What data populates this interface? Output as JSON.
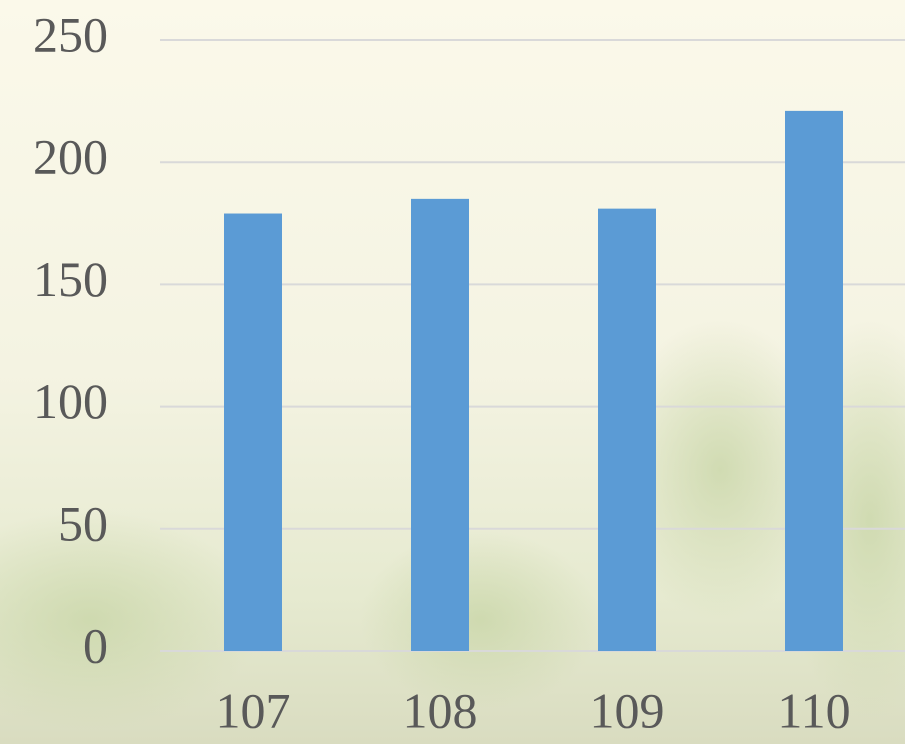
{
  "chart_data": {
    "type": "bar",
    "categories": [
      "107",
      "108",
      "109",
      "110"
    ],
    "values": [
      179,
      185,
      181,
      221
    ],
    "color": "#5b9bd5",
    "ylim": [
      0,
      250
    ],
    "yticks": [
      0,
      50,
      100,
      150,
      200,
      250
    ],
    "grid": true
  }
}
